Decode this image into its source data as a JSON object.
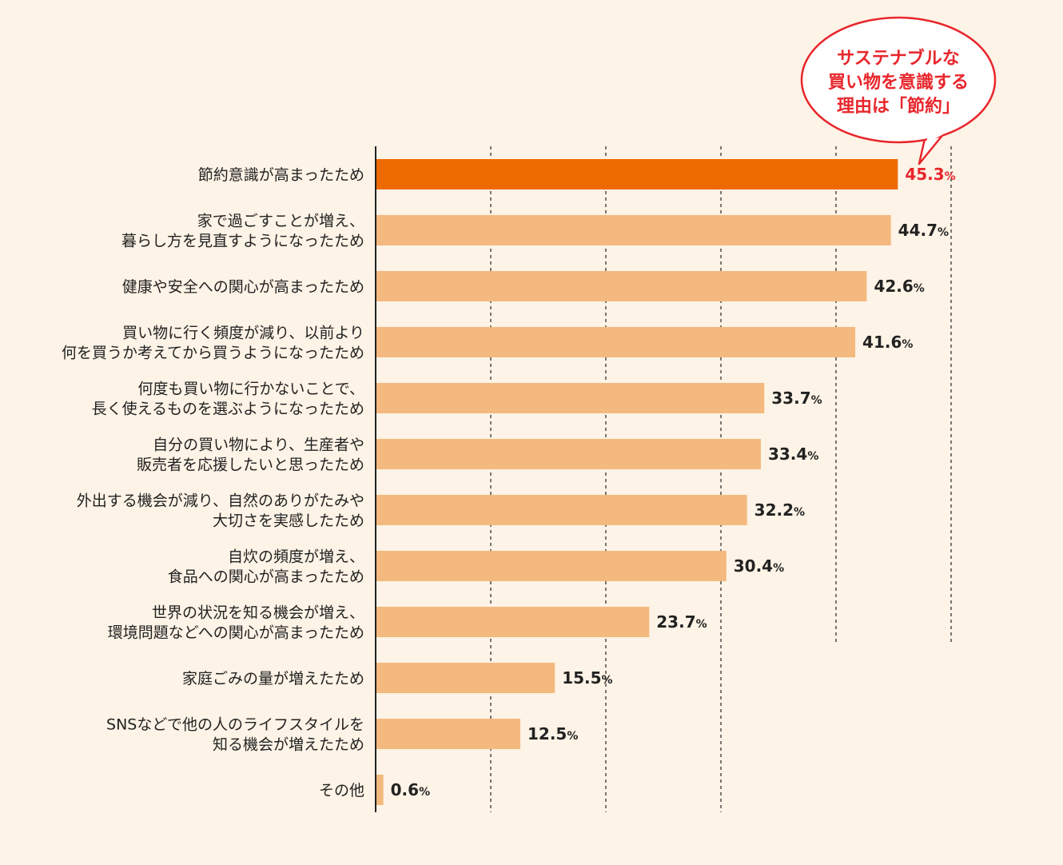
{
  "chart_data": {
    "type": "bar",
    "orientation": "horizontal",
    "categories": [
      "節約意識が高まったため",
      "家で過ごすことが増え、\n暮らし方を見直すようになったため",
      "健康や安全への関心が高まったため",
      "買い物に行く頻度が減り、以前より\n何を買うか考えてから買うようになったため",
      "何度も買い物に行かないことで、\n長く使えるものを選ぶようになったため",
      "自分の買い物により、生産者や\n販売者を応援したいと思ったため",
      "外出する機会が減り、自然のありがたみや\n大切さを実感したため",
      "自炊の頻度が増え、\n食品への関心が高まったため",
      "世界の状況を知る機会が増え、\n環境問題などへの関心が高まったため",
      "家庭ごみの量が増えたため",
      "SNSなどで他の人のライフスタイルを\n知る機会が増えたため",
      "その他"
    ],
    "values": [
      45.3,
      44.7,
      42.6,
      41.6,
      33.7,
      33.4,
      32.2,
      30.4,
      23.7,
      15.5,
      12.5,
      0.6
    ],
    "value_labels": [
      "45.3",
      "44.7",
      "42.6",
      "41.6",
      "33.7",
      "33.4",
      "32.2",
      "30.4",
      "23.7",
      "15.5",
      "12.5",
      "0.6"
    ],
    "unit": "%",
    "highlight_index": 0,
    "xlim": [
      0,
      50
    ],
    "gridlines": [
      10,
      20,
      30,
      40,
      50
    ],
    "grid": true,
    "colors": {
      "bar": "#f4b97e",
      "highlight_bar": "#ec6a00",
      "highlight_label": "#e8262c",
      "label": "#222222",
      "grid": "#333333",
      "background": "#fdf3e6"
    }
  },
  "callout": {
    "lines": [
      "サステナブルな",
      "買い物を意識する",
      "理由は「節約」"
    ],
    "color": "#e8262c"
  }
}
